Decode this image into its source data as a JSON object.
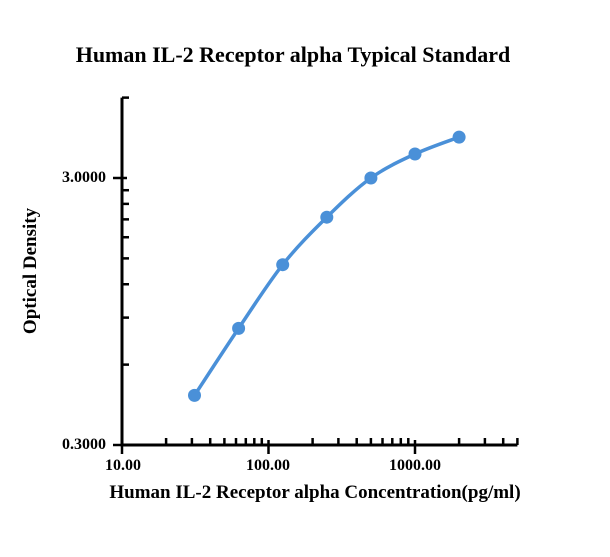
{
  "chart_data": {
    "type": "line",
    "title": "Human IL-2 Receptor alpha Typical Standard",
    "xlabel": "Human IL-2 Receptor alpha Concentration(pg/ml)",
    "ylabel": "Optical Density",
    "x": [
      31.25,
      62.5,
      125,
      250,
      500,
      1000,
      2000
    ],
    "series": [
      {
        "name": "Optical Density",
        "values": [
          0.46,
          0.82,
          1.42,
          2.14,
          3.0,
          3.69,
          4.27
        ]
      }
    ],
    "x_axis": {
      "scale": "log",
      "min": 10,
      "max": 5000,
      "major_ticks": [
        {
          "value": 10,
          "label": "10.00"
        },
        {
          "value": 100,
          "label": "100.00"
        },
        {
          "value": 1000,
          "label": "1000.00"
        }
      ],
      "minor_ticks": [
        20,
        30,
        40,
        50,
        60,
        70,
        80,
        90,
        200,
        300,
        400,
        500,
        600,
        700,
        800,
        900,
        2000,
        3000,
        4000,
        5000
      ]
    },
    "y_axis": {
      "scale": "log",
      "min": 0.3,
      "max": 6,
      "major_ticks": [
        {
          "value": 0.3,
          "label": "0.3000"
        },
        {
          "value": 3,
          "label": "3.0000"
        }
      ],
      "minor_ticks": [
        0.6,
        0.9,
        1.2,
        1.5,
        1.8,
        2.1,
        2.4,
        2.7,
        6
      ]
    },
    "grid": false,
    "legend": false,
    "line_style": "smooth",
    "marker": "circle",
    "colors": {
      "line": "#4a90d8",
      "marker": "#4a90d8",
      "axis": "#000000",
      "text": "#000000",
      "background": "#ffffff"
    }
  }
}
